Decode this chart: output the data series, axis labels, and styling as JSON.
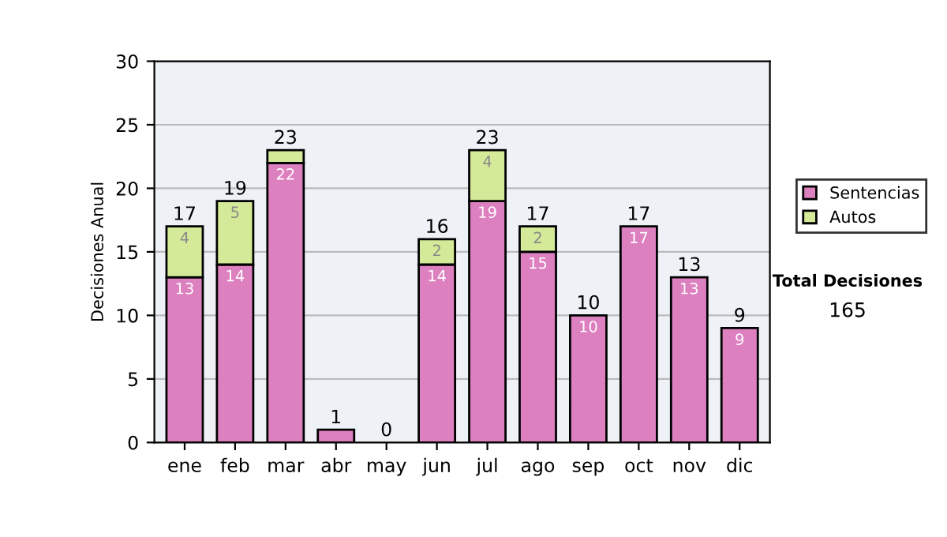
{
  "chart_data": {
    "type": "bar",
    "stacked": true,
    "ylabel": "Decisiones Anual",
    "categories": [
      "ene",
      "feb",
      "mar",
      "abr",
      "may",
      "jun",
      "jul",
      "ago",
      "sep",
      "oct",
      "nov",
      "dic"
    ],
    "series": [
      {
        "name": "Sentencias",
        "color": "#dd80c0",
        "values": [
          13,
          14,
          22,
          1,
          0,
          14,
          19,
          15,
          10,
          17,
          13,
          9
        ],
        "value_labels": [
          "13",
          "14",
          "22",
          null,
          null,
          "14",
          "19",
          "15",
          "10",
          "17",
          "13",
          "9"
        ]
      },
      {
        "name": "Autos",
        "color": "#d4ea98",
        "values": [
          4,
          5,
          1,
          0,
          0,
          2,
          4,
          2,
          0,
          0,
          0,
          0
        ],
        "value_labels": [
          "4",
          "5",
          null,
          null,
          null,
          "2",
          "4",
          "2",
          null,
          null,
          null,
          null
        ]
      }
    ],
    "totals": [
      "17",
      "19",
      "23",
      "1",
      "0",
      "16",
      "23",
      "17",
      "10",
      "17",
      "13",
      "9"
    ],
    "ylim": [
      0,
      30
    ],
    "yticks": [
      0,
      5,
      10,
      15,
      20,
      25,
      30
    ],
    "grid": "y",
    "legend": "right",
    "annotations": [
      "Total Decisiones",
      "165"
    ]
  }
}
